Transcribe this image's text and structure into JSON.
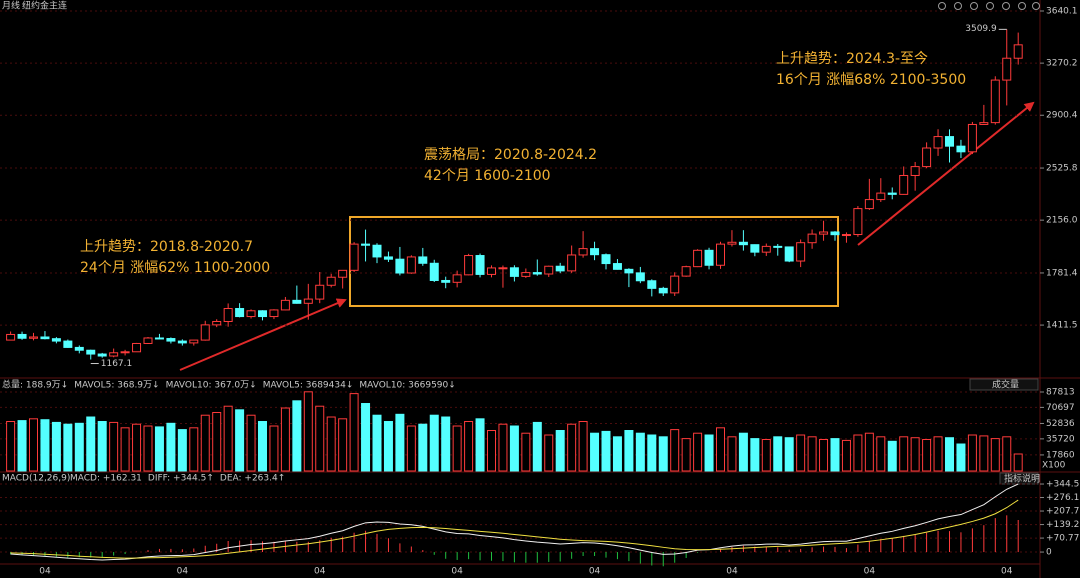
{
  "chart_data": [
    {
      "type": "candlestick",
      "period": "月线",
      "title": "纽约金主连",
      "up_color": "#ff3b3b",
      "down_color": "#54ffff",
      "ylim": [
        1036,
        3640.1
      ],
      "yticks": [
        3640.1,
        3270.2,
        2900.4,
        2525.8,
        {
          "value": 2156,
          "label": "2156.0"
        },
        1781.4,
        1411.5
      ],
      "ohlc": [
        [
          1305,
          1366,
          1303,
          1345
        ],
        [
          1345,
          1365,
          1307,
          1318
        ],
        [
          1318,
          1356,
          1303,
          1327
        ],
        [
          1327,
          1369,
          1310,
          1315
        ],
        [
          1315,
          1326,
          1282,
          1298
        ],
        [
          1298,
          1309,
          1250,
          1253
        ],
        [
          1253,
          1267,
          1211,
          1233
        ],
        [
          1233,
          1237,
          1167.1,
          1206
        ],
        [
          1206,
          1214,
          1180,
          1192
        ],
        [
          1192,
          1245,
          1183,
          1215
        ],
        [
          1215,
          1236,
          1196,
          1222
        ],
        [
          1222,
          1285,
          1221,
          1281
        ],
        [
          1281,
          1327,
          1277,
          1320
        ],
        [
          1320,
          1349,
          1312,
          1316
        ],
        [
          1316,
          1324,
          1281,
          1298
        ],
        [
          1298,
          1310,
          1266,
          1285
        ],
        [
          1285,
          1306,
          1266,
          1305
        ],
        [
          1305,
          1442,
          1301,
          1413
        ],
        [
          1413,
          1453,
          1397,
          1437
        ],
        [
          1437,
          1565,
          1400,
          1529
        ],
        [
          1529,
          1567,
          1466,
          1472
        ],
        [
          1472,
          1523,
          1458,
          1513
        ],
        [
          1513,
          1517,
          1445,
          1472
        ],
        [
          1472,
          1524,
          1454,
          1519
        ],
        [
          1519,
          1611,
          1517,
          1587
        ],
        [
          1587,
          1692,
          1563,
          1566
        ],
        [
          1566,
          1704,
          1450,
          1596
        ],
        [
          1596,
          1788,
          1567,
          1694
        ],
        [
          1694,
          1775,
          1679,
          1751
        ],
        [
          1751,
          1802,
          1671,
          1800
        ],
        [
          1800,
          2000,
          1788,
          1986
        ],
        [
          1986,
          2089,
          1863,
          1978
        ],
        [
          1978,
          1992,
          1851,
          1895
        ],
        [
          1895,
          1933,
          1859,
          1879
        ],
        [
          1879,
          1966,
          1764,
          1781
        ],
        [
          1781,
          1907,
          1775,
          1895
        ],
        [
          1895,
          1959,
          1832,
          1850
        ],
        [
          1850,
          1875,
          1717,
          1728
        ],
        [
          1728,
          1755,
          1673,
          1715
        ],
        [
          1715,
          1798,
          1679,
          1768
        ],
        [
          1768,
          1917,
          1765,
          1905
        ],
        [
          1905,
          1919,
          1750,
          1771
        ],
        [
          1771,
          1835,
          1750,
          1817
        ],
        [
          1817,
          1834,
          1677,
          1818
        ],
        [
          1818,
          1836,
          1721,
          1757
        ],
        [
          1757,
          1813,
          1746,
          1784
        ],
        [
          1784,
          1877,
          1762,
          1774
        ],
        [
          1774,
          1833,
          1753,
          1829
        ],
        [
          1829,
          1853,
          1780,
          1796
        ],
        [
          1796,
          1976,
          1782,
          1909
        ],
        [
          1909,
          2078,
          1890,
          1954
        ],
        [
          1954,
          2003,
          1872,
          1911
        ],
        [
          1911,
          1919,
          1807,
          1848
        ],
        [
          1848,
          1880,
          1805,
          1807
        ],
        [
          1807,
          1815,
          1681,
          1782
        ],
        [
          1782,
          1824,
          1709,
          1726
        ],
        [
          1726,
          1736,
          1615,
          1672
        ],
        [
          1672,
          1683,
          1618,
          1640
        ],
        [
          1640,
          1786,
          1618,
          1759
        ],
        [
          1759,
          1833,
          1754,
          1826
        ],
        [
          1826,
          1950,
          1823,
          1942
        ],
        [
          1942,
          1960,
          1807,
          1836
        ],
        [
          1836,
          2003,
          1810,
          1986
        ],
        [
          1986,
          2085,
          1969,
          1999
        ],
        [
          1999,
          2085,
          1940,
          1982
        ],
        [
          1982,
          1984,
          1900,
          1929
        ],
        [
          1929,
          1990,
          1902,
          1970
        ],
        [
          1970,
          1987,
          1904,
          1966
        ],
        [
          1966,
          1967,
          1858,
          1866
        ],
        [
          1866,
          2019,
          1823,
          1996
        ],
        [
          1996,
          2090,
          1953,
          2057
        ],
        [
          2057,
          2152,
          2010,
          2072
        ],
        [
          2072,
          2078,
          2010,
          2053
        ],
        [
          2053,
          2069,
          1996,
          2054
        ],
        [
          2054,
          2256,
          2038,
          2238
        ],
        [
          2238,
          2449,
          2228,
          2302
        ],
        [
          2302,
          2454,
          2285,
          2348
        ],
        [
          2348,
          2388,
          2304,
          2339
        ],
        [
          2339,
          2537,
          2337,
          2473
        ],
        [
          2473,
          2569,
          2365,
          2536
        ],
        [
          2536,
          2708,
          2525,
          2668
        ],
        [
          2668,
          2801,
          2612,
          2749
        ],
        [
          2749,
          2800,
          2565,
          2681
        ],
        [
          2681,
          2726,
          2597,
          2641
        ],
        [
          2641,
          2853,
          2625,
          2835
        ],
        [
          2835,
          2974,
          2832,
          2848
        ],
        [
          2848,
          3177,
          2834,
          3150
        ],
        [
          3150,
          3509.9,
          2970,
          3305
        ],
        [
          3305,
          3487,
          3260,
          3400
        ]
      ],
      "annotations": [
        {
          "lines": [
            "上升趋势：2018.8-2020.7",
            "24个月 涨幅62% 1100-2000"
          ]
        },
        {
          "lines": [
            "震荡格局：2020.8-2024.2",
            "42个月 1600-2100"
          ]
        },
        {
          "lines": [
            "上升趋势：2024.3-至今",
            "16个月 涨幅68% 2100-3500"
          ]
        }
      ]
    },
    {
      "type": "bar",
      "title": "成交量",
      "unit": "X100",
      "header": [
        {
          "text": "总量: 188.9万↓",
          "color": "#ff5050"
        },
        {
          "text": "MAVOL5: 368.9万↓",
          "color": "#e8e8e8"
        },
        {
          "text": "MAVOL10: 367.0万↓",
          "color": "#f0e040"
        },
        {
          "text": "MAVOL5: 3689434↓",
          "color": "#e060e0"
        },
        {
          "text": "MAVOL10: 3669590↓",
          "color": "#f0e040"
        }
      ],
      "ylim": [
        0,
        97800
      ],
      "yticks": [
        87813,
        70697,
        52836,
        35720,
        17860
      ],
      "values": [
        55000,
        56000,
        58000,
        57000,
        54000,
        52000,
        53000,
        60000,
        55000,
        54000,
        48000,
        52000,
        50000,
        49000,
        53000,
        46000,
        48000,
        62000,
        65000,
        72000,
        68000,
        62000,
        55000,
        50000,
        70000,
        78000,
        88000,
        72000,
        60000,
        58000,
        86000,
        75000,
        62000,
        55000,
        63000,
        50000,
        52000,
        62000,
        60000,
        50000,
        55000,
        58000,
        45000,
        52000,
        50000,
        42000,
        54000,
        40000,
        45000,
        52000,
        55000,
        42000,
        44000,
        38000,
        45000,
        42000,
        40000,
        38000,
        46000,
        36000,
        42000,
        40000,
        48000,
        38000,
        42000,
        36000,
        35000,
        38000,
        37000,
        40000,
        38000,
        35000,
        36000,
        34000,
        40000,
        42000,
        38000,
        33000,
        38000,
        37000,
        35000,
        38000,
        37000,
        30000,
        40000,
        39000,
        36000,
        38000,
        18890
      ]
    },
    {
      "type": "macd",
      "title": "MACD(12,26,9)",
      "button": "指标说明",
      "diff_color": "#f0f0f0",
      "dea_color": "#f0e040",
      "header": [
        {
          "text": "MACD: +162.31",
          "color": "#ff5050"
        },
        {
          "text": "DIFF: +344.5↑",
          "color": "#e8e8e8"
        },
        {
          "text": "DEA: +263.4↑",
          "color": "#f0e040"
        }
      ],
      "ylim": [
        -101,
        375
      ],
      "yticks": [
        {
          "value": 344.5,
          "label": "+344.5"
        },
        {
          "value": 276.1,
          "label": "+276.1"
        },
        {
          "value": 207.7,
          "label": "+207.7"
        },
        {
          "value": 139.2,
          "label": "+139.2"
        },
        {
          "value": 70.77,
          "label": "+70.77"
        },
        0
      ],
      "categories": [
        null,
        null,
        null,
        "04",
        null,
        null,
        null,
        null,
        null,
        null,
        null,
        null,
        null,
        null,
        null,
        "04",
        null,
        null,
        null,
        null,
        null,
        null,
        null,
        null,
        null,
        null,
        null,
        "04",
        null,
        null,
        null,
        null,
        null,
        null,
        null,
        null,
        null,
        null,
        null,
        "04",
        null,
        null,
        null,
        null,
        null,
        null,
        null,
        null,
        null,
        null,
        null,
        "04",
        null,
        null,
        null,
        null,
        null,
        null,
        null,
        null,
        null,
        null,
        null,
        "04",
        null,
        null,
        null,
        null,
        null,
        null,
        null,
        null,
        null,
        null,
        null,
        "04",
        null,
        null,
        null,
        null,
        null,
        null,
        null,
        null,
        null,
        null,
        null,
        "04",
        null
      ],
      "diff": [
        -10,
        -14,
        -18,
        -22,
        -26,
        -31,
        -34,
        -38,
        -40,
        -38,
        -36,
        -30,
        -24,
        -20,
        -18,
        -17,
        -13,
        -2,
        8,
        22,
        30,
        38,
        42,
        48,
        56,
        62,
        68,
        80,
        95,
        108,
        130,
        148,
        152,
        150,
        142,
        138,
        130,
        116,
        102,
        94,
        92,
        84,
        78,
        72,
        63,
        56,
        50,
        46,
        41,
        44,
        48,
        46,
        40,
        32,
        22,
        10,
        -2,
        -12,
        -10,
        -2,
        10,
        12,
        22,
        30,
        36,
        37,
        40,
        41,
        36,
        40,
        47,
        53,
        55,
        55,
        68,
        82,
        95,
        105,
        120,
        133,
        150,
        168,
        180,
        190,
        215,
        240,
        280,
        318,
        344.5
      ],
      "dea": [
        -4,
        -6,
        -8,
        -11,
        -14,
        -17,
        -21,
        -24,
        -27,
        -29,
        -31,
        -31,
        -29,
        -28,
        -26,
        -24,
        -22,
        -18,
        -13,
        -6,
        1,
        8,
        15,
        22,
        29,
        36,
        42,
        50,
        59,
        69,
        81,
        94,
        106,
        115,
        120,
        124,
        125,
        123,
        119,
        114,
        110,
        105,
        100,
        95,
        89,
        83,
        77,
        71,
        65,
        61,
        58,
        56,
        54,
        50,
        45,
        39,
        32,
        24,
        17,
        13,
        12,
        12,
        14,
        17,
        20,
        23,
        26,
        29,
        30,
        32,
        35,
        39,
        42,
        45,
        49,
        55,
        62,
        70,
        79,
        89,
        101,
        114,
        127,
        140,
        155,
        172,
        194,
        225,
        263.4
      ],
      "macd": [
        -12,
        -16,
        -20,
        -22,
        -24,
        -28,
        -26,
        -28,
        -26,
        -18,
        -10,
        2,
        10,
        16,
        16,
        14,
        18,
        32,
        42,
        56,
        58,
        60,
        54,
        52,
        54,
        52,
        52,
        60,
        72,
        78,
        98,
        108,
        92,
        70,
        44,
        28,
        10,
        -14,
        -34,
        -40,
        -36,
        -42,
        -44,
        -46,
        -52,
        -54,
        -54,
        -50,
        -48,
        -34,
        -20,
        -20,
        -28,
        -36,
        -46,
        -58,
        -68,
        -72,
        -54,
        -30,
        -4,
        0,
        16,
        26,
        32,
        28,
        28,
        24,
        12,
        16,
        24,
        28,
        26,
        20,
        38,
        54,
        66,
        70,
        82,
        88,
        98,
        108,
        106,
        100,
        120,
        136,
        172,
        186,
        162.31
      ]
    }
  ]
}
